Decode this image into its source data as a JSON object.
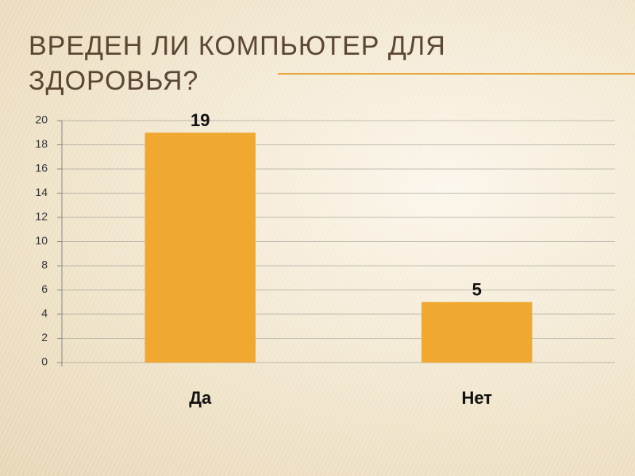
{
  "chart_data": {
    "type": "bar",
    "title": "ВРЕДЕН ЛИ КОМПЬЮТЕР ДЛЯ ЗДОРОВЬЯ?",
    "categories": [
      "Да",
      "Нет"
    ],
    "values": [
      19,
      5
    ],
    "color": "#f0a830",
    "ylim": [
      0,
      20
    ],
    "yticks": [
      0,
      2,
      4,
      6,
      8,
      10,
      12,
      14,
      16,
      18,
      20
    ],
    "grid": true
  }
}
